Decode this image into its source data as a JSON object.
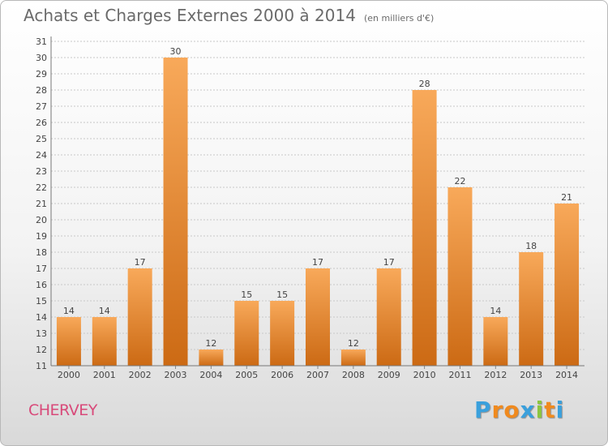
{
  "title": "Achats et Charges Externes 2000 à 2014",
  "subtitle": "(en milliers d'€)",
  "commune": "CHERVEY",
  "brand": {
    "letters": [
      "P",
      "r",
      "o",
      "x",
      "i",
      "t",
      "i"
    ],
    "colors": [
      "#3aa0dc",
      "#f08a1e",
      "#f08a1e",
      "#3aa0dc",
      "#8cc63f",
      "#f08a1e",
      "#3aa0dc"
    ]
  },
  "colors": {
    "bar_top": "#f8a95a",
    "bar_bottom": "#cc6a14",
    "grid": "#c8c8c8",
    "text": "#444444"
  },
  "chart_data": {
    "type": "bar",
    "categories": [
      "2000",
      "2001",
      "2002",
      "2003",
      "2004",
      "2005",
      "2006",
      "2007",
      "2008",
      "2009",
      "2010",
      "2011",
      "2012",
      "2013",
      "2014"
    ],
    "values": [
      14,
      14,
      17,
      30,
      12,
      15,
      15,
      17,
      12,
      17,
      28,
      22,
      14,
      18,
      21
    ],
    "yticks": [
      11,
      12,
      13,
      14,
      15,
      16,
      17,
      18,
      19,
      20,
      21,
      22,
      23,
      24,
      25,
      26,
      27,
      28,
      29,
      30,
      31
    ],
    "ylim": [
      11,
      31
    ],
    "grid": true
  }
}
